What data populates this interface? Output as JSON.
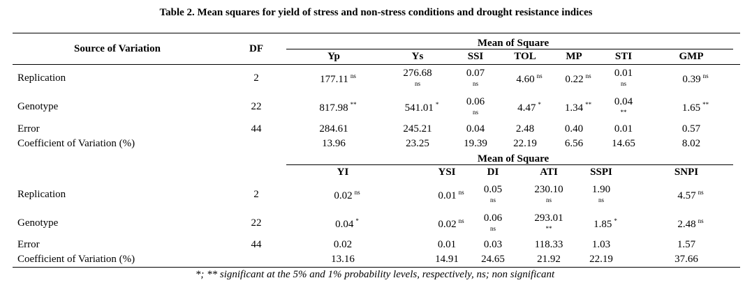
{
  "title": "Table 2. Mean squares for yield of stress and non-stress conditions and drought resistance indices",
  "tables": [
    {
      "header": {
        "source": "Source of Variation",
        "df": "DF",
        "group": "Mean of Square",
        "columns": [
          "Yp",
          "Ys",
          "SSI",
          "TOL",
          "MP",
          "STI",
          "GMP"
        ]
      },
      "rows": [
        {
          "source": "Replication",
          "df": "2",
          "cells": [
            {
              "value": "177.11",
              "sig": "ns"
            },
            {
              "value": "276.68",
              "sig": "ns"
            },
            {
              "value": "0.07",
              "sig": "ns"
            },
            {
              "value": "4.60",
              "sig": "ns"
            },
            {
              "value": "0.22",
              "sig": "ns"
            },
            {
              "value": "0.01",
              "sig": "ns"
            },
            {
              "value": "0.39",
              "sig": "ns"
            }
          ]
        },
        {
          "source": "Genotype",
          "df": "22",
          "cells": [
            {
              "value": "817.98",
              "sig": "**"
            },
            {
              "value": "541.01",
              "sig": "*"
            },
            {
              "value": "0.06",
              "sig": "ns"
            },
            {
              "value": "4.47",
              "sig": "*"
            },
            {
              "value": "1.34",
              "sig": "**"
            },
            {
              "value": "0.04",
              "sig": "**"
            },
            {
              "value": "1.65",
              "sig": "**"
            }
          ]
        },
        {
          "source": "Error",
          "df": "44",
          "cells": [
            {
              "value": "284.61"
            },
            {
              "value": "245.21"
            },
            {
              "value": "0.04"
            },
            {
              "value": "2.48"
            },
            {
              "value": "0.40"
            },
            {
              "value": "0.01"
            },
            {
              "value": "0.57"
            }
          ]
        },
        {
          "source": "Coefficient of Variation (%)",
          "cells": [
            {
              "value": "13.96"
            },
            {
              "value": "23.25"
            },
            {
              "value": "19.39"
            },
            {
              "value": "22.19"
            },
            {
              "value": "6.56"
            },
            {
              "value": "14.65"
            },
            {
              "value": "8.02"
            }
          ]
        }
      ]
    },
    {
      "header": {
        "group": "Mean of Square",
        "columns": [
          "YI",
          "YSI",
          "DI",
          "ATI",
          "SSPI",
          "SNPI"
        ]
      },
      "rows": [
        {
          "source": "Replication",
          "df": "2",
          "cells": [
            {
              "value": "0.02",
              "sig": "ns"
            },
            {
              "value": "0.01",
              "sig": "ns"
            },
            {
              "value": "0.05",
              "sig": "ns"
            },
            {
              "value": "230.10",
              "sig": "ns"
            },
            {
              "value": "1.90",
              "sig": "ns"
            },
            {
              "value": "4.57",
              "sig": "ns"
            }
          ]
        },
        {
          "source": "Genotype",
          "df": "22",
          "cells": [
            {
              "value": "0.04",
              "sig": "*"
            },
            {
              "value": "0.02",
              "sig": "ns"
            },
            {
              "value": "0.06",
              "sig": "ns"
            },
            {
              "value": "293.01",
              "sig": "**"
            },
            {
              "value": "1.85",
              "sig": "*"
            },
            {
              "value": "2.48",
              "sig": "ns"
            }
          ]
        },
        {
          "source": "Error",
          "df": "44",
          "cells": [
            {
              "value": "0.02"
            },
            {
              "value": "0.01"
            },
            {
              "value": "0.03"
            },
            {
              "value": "118.33"
            },
            {
              "value": "1.03"
            },
            {
              "value": "1.57"
            }
          ]
        },
        {
          "source": "Coefficient of Variation (%)",
          "cells": [
            {
              "value": "13.16"
            },
            {
              "value": "14.91"
            },
            {
              "value": "24.65"
            },
            {
              "value": "21.92"
            },
            {
              "value": "22.19"
            },
            {
              "value": "37.66"
            }
          ]
        }
      ]
    }
  ],
  "footnote": "*; ** significant at the 5% and 1% probability levels, respectively, ns; non significant"
}
